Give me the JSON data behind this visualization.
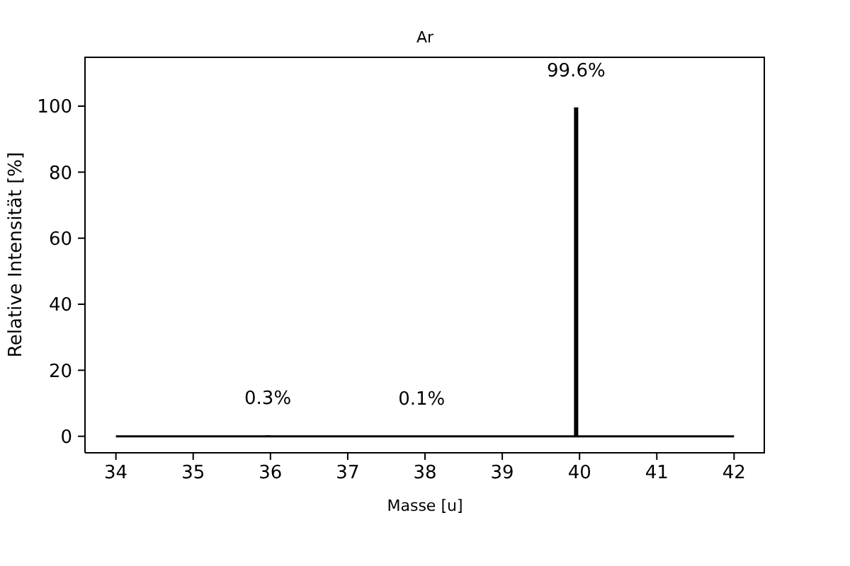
{
  "chart_data": {
    "type": "bar",
    "title": "Ar",
    "xlabel": "Masse [u]",
    "ylabel": "Relative Intensität [%]",
    "xlim": [
      33.6,
      42.4
    ],
    "xticks": [
      34,
      35,
      36,
      37,
      38,
      39,
      40,
      41,
      42
    ],
    "ylim": [
      -5,
      115
    ],
    "yticks": [
      0,
      20,
      40,
      60,
      80,
      100
    ],
    "marker": "none",
    "series": [
      {
        "color": "#000000",
        "x": [
          35.97,
          37.96,
          39.96
        ],
        "values": [
          0.3,
          0.1,
          99.6
        ],
        "value_labels": [
          "0.3%",
          "0.1%",
          "99.6%"
        ]
      },
      {
        "type": "line",
        "color": "#000000",
        "x": [
          34,
          42
        ],
        "values": [
          0,
          0
        ]
      }
    ]
  }
}
